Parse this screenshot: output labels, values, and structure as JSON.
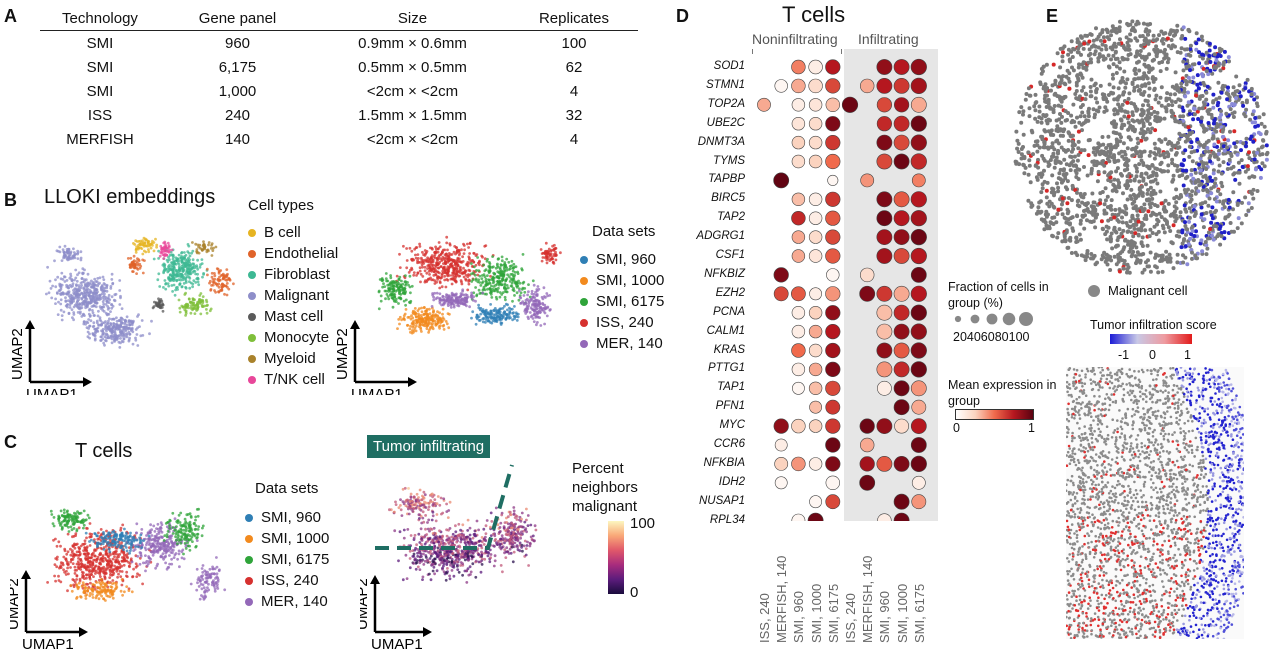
{
  "panelA": {
    "label": "A",
    "headers": [
      "Technology",
      "Gene panel",
      "Size",
      "Replicates"
    ],
    "rows": [
      [
        "SMI",
        "960",
        "0.9mm × 0.6mm",
        "100"
      ],
      [
        "SMI",
        "6,175",
        "0.5mm × 0.5mm",
        "62"
      ],
      [
        "SMI",
        "1,000",
        "<2cm × <2cm",
        "4"
      ],
      [
        "ISS",
        "240",
        "1.5mm × 1.5mm",
        "32"
      ],
      [
        "MERFISH",
        "140",
        "<2cm × <2cm",
        "4"
      ]
    ]
  },
  "panelB": {
    "label": "B",
    "title": "LLOKI embeddings",
    "celltypes_title": "Cell types",
    "celltypes": [
      {
        "name": "B cell",
        "color": "#e6b422"
      },
      {
        "name": "Endothelial",
        "color": "#e0632a"
      },
      {
        "name": "Fibroblast",
        "color": "#3db893"
      },
      {
        "name": "Malignant",
        "color": "#8e8ec9"
      },
      {
        "name": "Mast cell",
        "color": "#5a5a5a"
      },
      {
        "name": "Monocyte",
        "color": "#7fbf3a"
      },
      {
        "name": "Myeloid",
        "color": "#a9822b"
      },
      {
        "name": "T/NK cell",
        "color": "#e8479a"
      }
    ],
    "datasets_title": "Data sets",
    "datasets": [
      {
        "name": "SMI, 960",
        "color": "#2f7fb5"
      },
      {
        "name": "SMI, 1000",
        "color": "#f28a1e"
      },
      {
        "name": "SMI, 6175",
        "color": "#2fa43a"
      },
      {
        "name": "ISS, 240",
        "color": "#d6312f"
      },
      {
        "name": "MER, 140",
        "color": "#9368b8"
      }
    ],
    "umap1": "UMAP1",
    "umap2": "UMAP2"
  },
  "panelC": {
    "label": "C",
    "title": "T cells",
    "datasets_title": "Data sets",
    "datasets": [
      {
        "name": "SMI, 960",
        "color": "#2f7fb5"
      },
      {
        "name": "SMI, 1000",
        "color": "#f28a1e"
      },
      {
        "name": "SMI, 6175",
        "color": "#2fa43a"
      },
      {
        "name": "ISS, 240",
        "color": "#d6312f"
      },
      {
        "name": "MER, 140",
        "color": "#9368b8"
      }
    ],
    "tumor_label": "Tumor infiltrating",
    "colorbar_title": "Percent neighbors malignant",
    "cb_max": "100",
    "cb_min": "0",
    "umap1": "UMAP1",
    "umap2": "UMAP2"
  },
  "panelD": {
    "label": "D",
    "title": "T cells",
    "group_noninf": "Noninfiltrating",
    "group_inf": "Infiltrating",
    "fraction_title": "Fraction of cells in group (%)",
    "fraction_ticks": "20406080100",
    "mean_title": "Mean expression in group",
    "mean_min": "0",
    "mean_max": "1"
  },
  "chart_data": {
    "type": "dotplot",
    "title": "T cells",
    "groups": [
      "Noninfiltrating",
      "Infiltrating"
    ],
    "columns": [
      "ISS, 240",
      "MERFISH, 140",
      "SMI, 960",
      "SMI, 1000",
      "SMI, 6175",
      "ISS, 240",
      "MERFISH, 140",
      "SMI, 960",
      "SMI, 1000",
      "SMI, 6175"
    ],
    "genes": [
      "SOD1",
      "STMN1",
      "TOP2A",
      "UBE2C",
      "DNMT3A",
      "TYMS",
      "TAPBP",
      "BIRC5",
      "TAP2",
      "ADGRG1",
      "CSF1",
      "NFKBIZ",
      "EZH2",
      "PCNA",
      "CALM1",
      "KRAS",
      "PTTG1",
      "TAP1",
      "PFN1",
      "MYC",
      "CCR6",
      "NFKBIA",
      "IDH2",
      "NUSAP1",
      "RPL34"
    ],
    "mean_expression": [
      [
        null,
        null,
        0.45,
        0.1,
        0.75,
        null,
        null,
        0.85,
        0.75,
        0.85
      ],
      [
        null,
        0.05,
        0.35,
        0.2,
        0.6,
        null,
        0.35,
        0.75,
        0.65,
        0.8
      ],
      [
        0.35,
        null,
        0.1,
        0.15,
        0.3,
        0.95,
        null,
        0.6,
        0.8,
        0.35
      ],
      [
        null,
        null,
        0.15,
        0.2,
        0.9,
        null,
        null,
        0.7,
        0.7,
        0.95
      ],
      [
        null,
        null,
        0.25,
        0.2,
        0.65,
        null,
        null,
        0.9,
        0.6,
        0.85
      ],
      [
        null,
        null,
        0.2,
        0.25,
        0.5,
        null,
        null,
        0.6,
        0.95,
        0.7
      ],
      [
        null,
        0.98,
        null,
        null,
        0.05,
        null,
        0.4,
        null,
        null,
        0.45
      ],
      [
        null,
        null,
        0.3,
        0.1,
        0.65,
        null,
        null,
        0.9,
        0.55,
        0.75
      ],
      [
        null,
        null,
        0.7,
        0.1,
        0.55,
        null,
        null,
        0.95,
        0.75,
        0.8
      ],
      [
        null,
        null,
        0.35,
        0.2,
        0.6,
        null,
        null,
        0.8,
        0.85,
        0.95
      ],
      [
        null,
        null,
        0.35,
        0.15,
        0.55,
        null,
        null,
        0.8,
        0.6,
        0.75
      ],
      [
        null,
        0.9,
        null,
        null,
        0.05,
        null,
        0.2,
        null,
        null,
        0.95
      ],
      [
        null,
        0.6,
        0.55,
        0.1,
        0.4,
        null,
        0.9,
        0.65,
        0.35,
        0.75
      ],
      [
        null,
        null,
        0.1,
        0.25,
        0.85,
        null,
        null,
        0.3,
        0.7,
        0.95
      ],
      [
        null,
        null,
        0.1,
        0.35,
        0.75,
        null,
        null,
        0.3,
        0.85,
        0.85
      ],
      [
        null,
        null,
        0.5,
        0.2,
        0.8,
        null,
        null,
        0.85,
        0.55,
        0.9
      ],
      [
        null,
        null,
        0.1,
        0.35,
        0.9,
        null,
        null,
        0.4,
        0.7,
        0.95
      ],
      [
        null,
        null,
        0.05,
        0.3,
        0.6,
        null,
        null,
        0.1,
        0.95,
        0.4
      ],
      [
        null,
        null,
        null,
        0.3,
        0.65,
        null,
        null,
        null,
        0.95,
        0.35
      ],
      [
        null,
        0.85,
        0.25,
        0.25,
        0.65,
        null,
        0.95,
        0.85,
        0.2,
        0.75
      ],
      [
        null,
        0.1,
        null,
        null,
        0.95,
        null,
        0.35,
        null,
        null,
        0.95
      ],
      [
        null,
        0.25,
        0.4,
        0.1,
        0.9,
        null,
        0.8,
        0.55,
        0.9,
        0.95
      ],
      [
        null,
        0.05,
        null,
        null,
        0.05,
        null,
        0.95,
        null,
        null,
        0.1
      ],
      [
        null,
        null,
        null,
        0.05,
        0.6,
        null,
        null,
        null,
        0.95,
        0.4
      ],
      [
        null,
        null,
        0.05,
        0.95,
        null,
        null,
        null,
        0.1,
        0.95,
        null
      ]
    ],
    "fraction_pct": [
      [
        0,
        0,
        70,
        70,
        80,
        0,
        0,
        85,
        85,
        90
      ],
      [
        0,
        60,
        70,
        70,
        80,
        0,
        70,
        85,
        85,
        90
      ],
      [
        65,
        0,
        60,
        60,
        70,
        90,
        0,
        80,
        80,
        85
      ],
      [
        0,
        0,
        60,
        60,
        80,
        0,
        0,
        80,
        85,
        90
      ],
      [
        0,
        0,
        60,
        60,
        80,
        0,
        0,
        85,
        85,
        90
      ],
      [
        0,
        0,
        60,
        60,
        80,
        0,
        0,
        85,
        85,
        90
      ],
      [
        0,
        85,
        0,
        0,
        40,
        0,
        65,
        0,
        0,
        65
      ],
      [
        0,
        0,
        60,
        60,
        80,
        0,
        0,
        85,
        85,
        90
      ],
      [
        0,
        0,
        70,
        60,
        80,
        0,
        0,
        85,
        85,
        90
      ],
      [
        0,
        0,
        60,
        60,
        80,
        0,
        0,
        85,
        85,
        90
      ],
      [
        0,
        0,
        60,
        60,
        80,
        0,
        0,
        85,
        85,
        90
      ],
      [
        0,
        80,
        0,
        0,
        60,
        0,
        70,
        0,
        0,
        85
      ],
      [
        0,
        75,
        75,
        55,
        80,
        0,
        85,
        85,
        85,
        90
      ],
      [
        0,
        0,
        60,
        60,
        80,
        0,
        0,
        85,
        85,
        90
      ],
      [
        0,
        0,
        60,
        60,
        80,
        0,
        0,
        85,
        85,
        90
      ],
      [
        0,
        0,
        70,
        60,
        80,
        0,
        0,
        85,
        85,
        90
      ],
      [
        0,
        0,
        60,
        60,
        80,
        0,
        0,
        85,
        85,
        90
      ],
      [
        0,
        0,
        55,
        60,
        80,
        0,
        0,
        75,
        85,
        85
      ],
      [
        0,
        0,
        0,
        55,
        75,
        0,
        0,
        0,
        85,
        75
      ],
      [
        0,
        80,
        70,
        60,
        80,
        0,
        80,
        85,
        75,
        85
      ],
      [
        0,
        55,
        0,
        0,
        80,
        0,
        70,
        0,
        0,
        85
      ],
      [
        0,
        65,
        70,
        60,
        80,
        0,
        80,
        85,
        85,
        90
      ],
      [
        0,
        55,
        0,
        0,
        70,
        0,
        85,
        0,
        0,
        65
      ],
      [
        0,
        0,
        0,
        55,
        75,
        0,
        0,
        0,
        85,
        75
      ],
      [
        0,
        0,
        65,
        85,
        0,
        0,
        0,
        70,
        85,
        0
      ]
    ]
  },
  "panelE": {
    "label": "E",
    "malignant_label": "Malignant cell",
    "score_title": "Tumor infiltration score",
    "score_ticks": [
      "-1",
      "0",
      "1"
    ]
  }
}
